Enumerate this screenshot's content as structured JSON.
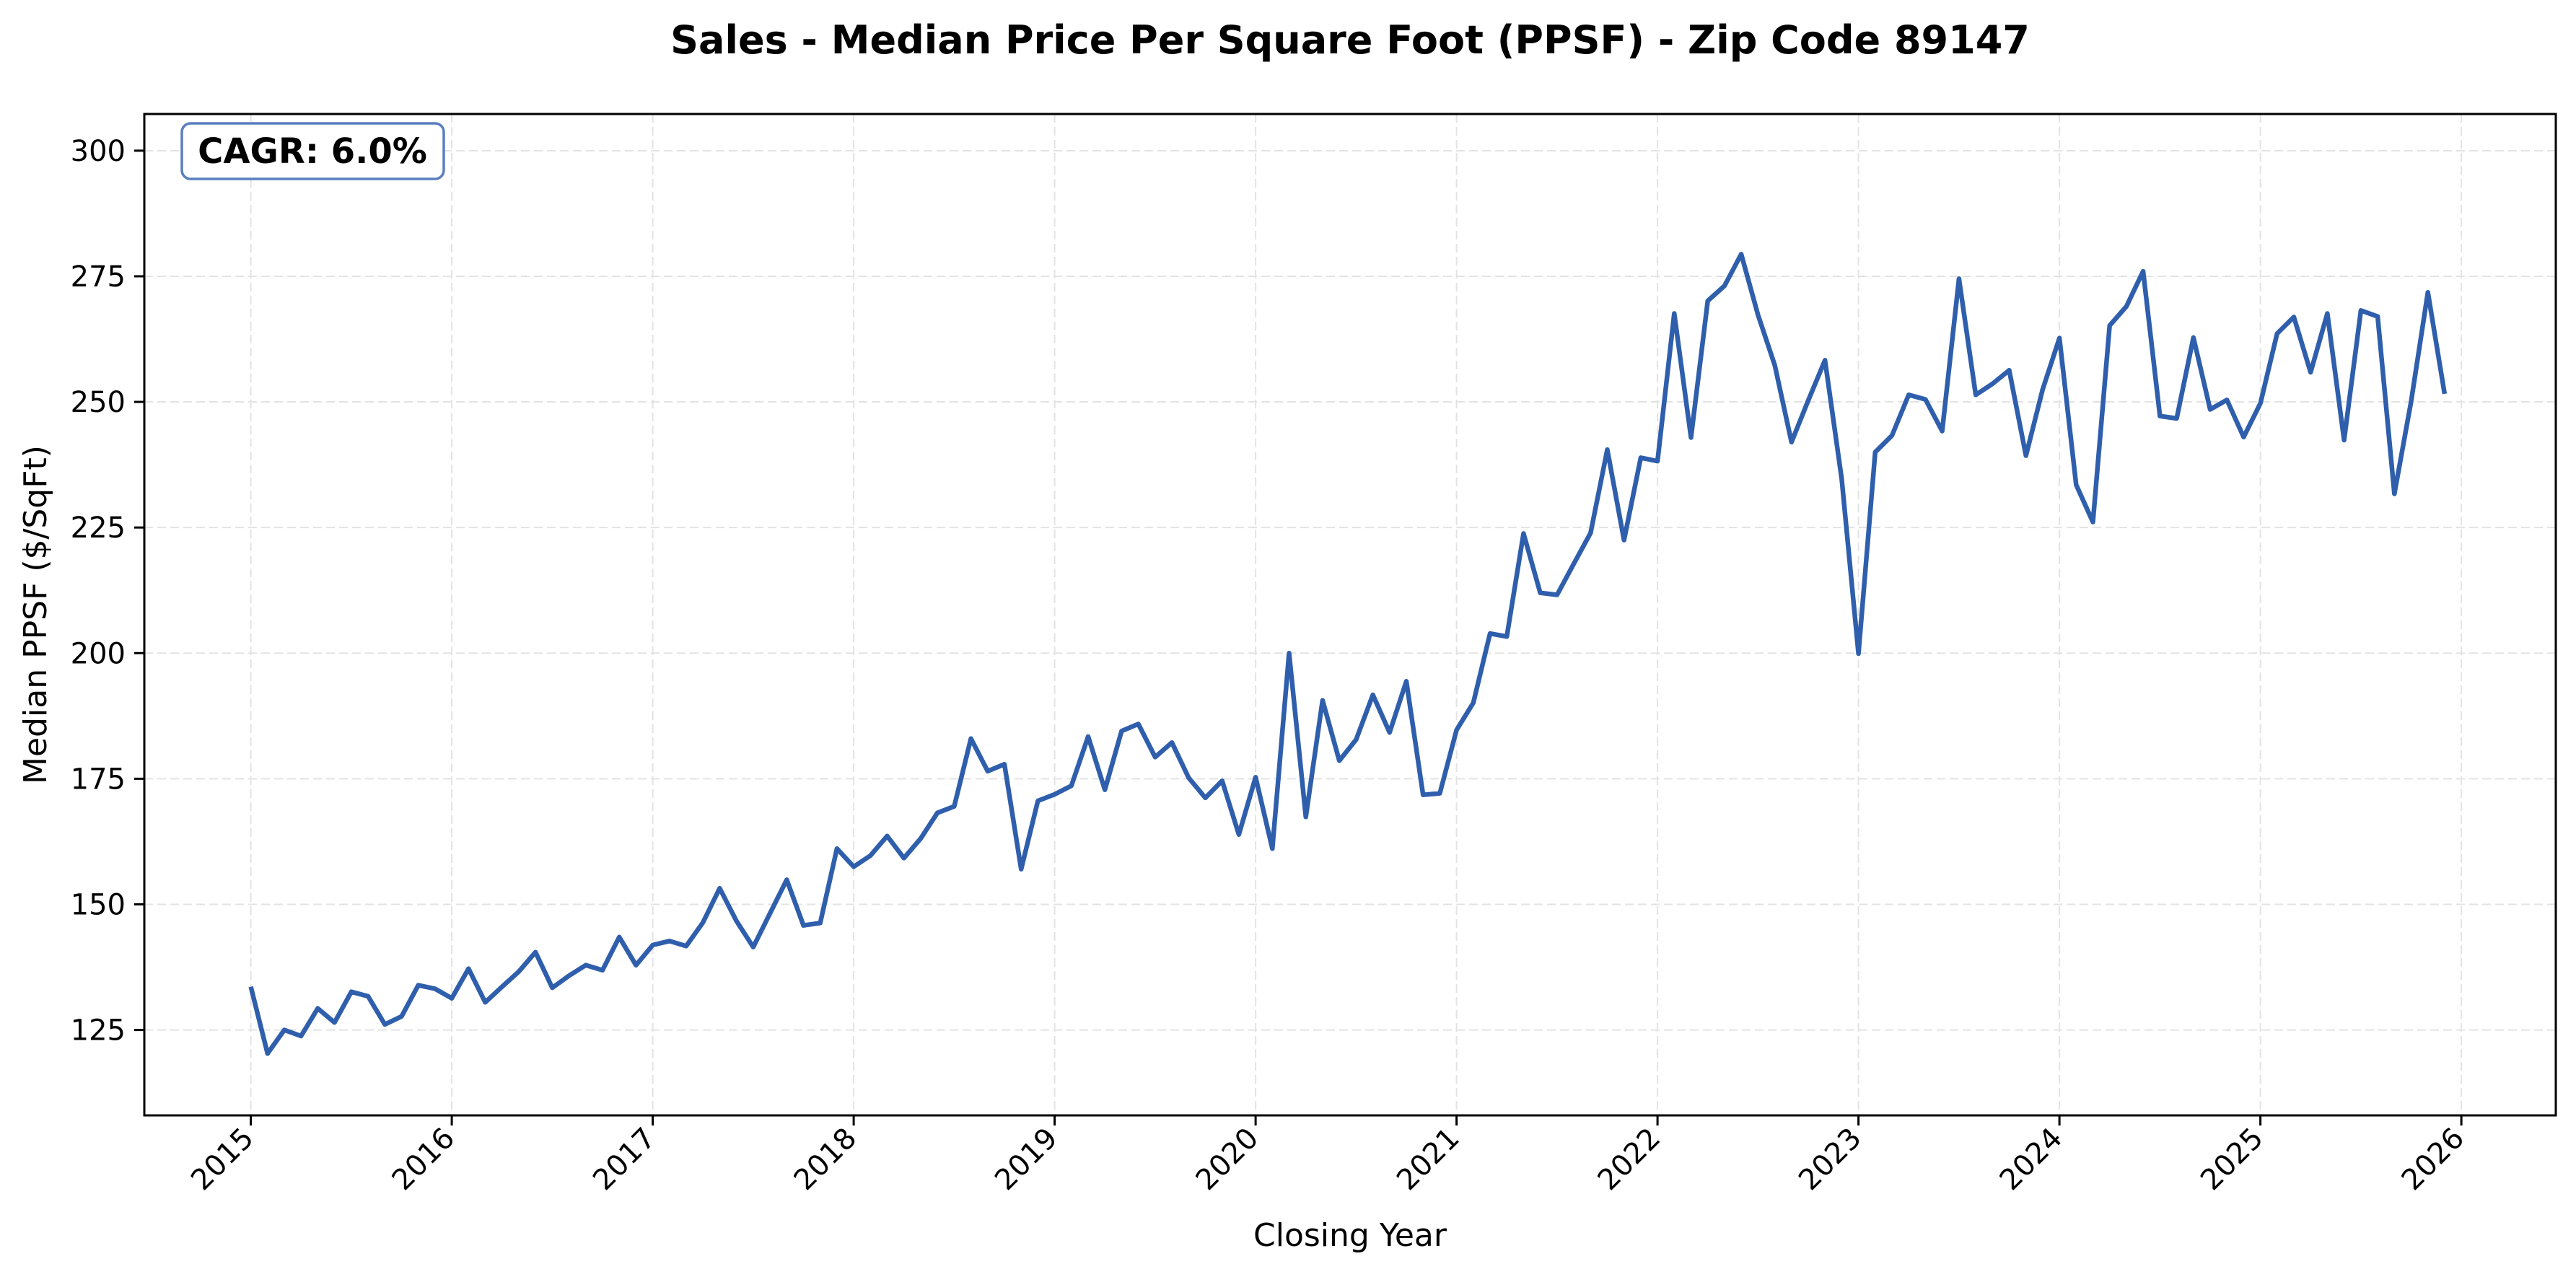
{
  "chart_data": {
    "type": "line",
    "title": "Sales - Median Price Per Square Foot (PPSF) - Zip Code 89147",
    "xlabel": "Closing Year",
    "ylabel": "Median PPSF ($/SqFt)",
    "annotation": "CAGR: 6.0%",
    "xlim": [
      2014.47,
      2026.47
    ],
    "ylim": [
      108,
      307.3
    ],
    "grid": true,
    "legend": "none",
    "line_color": "#2f5fac",
    "annotation_border_color": "#5b7fbf",
    "x_ticks": [
      2015,
      2016,
      2017,
      2018,
      2019,
      2020,
      2021,
      2022,
      2023,
      2024,
      2025,
      2026
    ],
    "x_tick_labels": [
      "2015",
      "2016",
      "2017",
      "2018",
      "2019",
      "2020",
      "2021",
      "2022",
      "2023",
      "2024",
      "2025",
      "2026"
    ],
    "y_ticks": [
      125,
      150,
      175,
      200,
      225,
      250,
      275,
      300
    ],
    "y_tick_labels": [
      "125",
      "150",
      "175",
      "200",
      "225",
      "250",
      "275",
      "300"
    ],
    "series": [
      {
        "name": "Median PPSF",
        "start": "2015-01",
        "frequency": "monthly",
        "values": [
          133.6,
          120.3,
          125.0,
          123.8,
          129.3,
          126.5,
          132.6,
          131.7,
          126.1,
          127.7,
          133.9,
          133.2,
          131.3,
          137.2,
          130.5,
          133.6,
          136.6,
          140.5,
          133.4,
          135.8,
          137.9,
          136.9,
          143.5,
          137.9,
          141.9,
          142.7,
          141.7,
          146.4,
          153.2,
          146.7,
          141.5,
          148.2,
          154.9,
          145.8,
          146.3,
          161.1,
          157.5,
          159.7,
          163.6,
          159.2,
          163.1,
          168.2,
          169.5,
          183.0,
          176.5,
          177.9,
          157.0,
          170.6,
          171.9,
          173.6,
          183.4,
          172.8,
          184.5,
          185.9,
          179.3,
          182.2,
          175.2,
          171.2,
          174.6,
          163.9,
          175.3,
          161.1,
          200.0,
          167.4,
          190.6,
          178.6,
          182.8,
          191.7,
          184.2,
          194.4,
          171.8,
          172.1,
          184.7,
          190.1,
          203.9,
          203.3,
          223.8,
          212.0,
          211.6,
          217.8,
          223.9,
          240.5,
          222.5,
          238.9,
          238.2,
          267.6,
          242.9,
          270.1,
          273.1,
          279.4,
          267.3,
          257.3,
          242.0,
          250.3,
          258.3,
          234.6,
          199.9,
          240.0,
          243.3,
          251.4,
          250.5,
          244.2,
          274.5,
          251.4,
          253.6,
          256.3,
          239.3,
          252.5,
          262.7,
          233.5,
          226.1,
          265.2,
          269.0,
          276.0,
          247.2,
          246.7,
          262.8,
          248.5,
          250.4,
          243.0,
          249.7,
          263.6,
          266.9,
          255.9,
          267.6,
          242.4,
          268.2,
          267.0,
          231.7,
          250.1,
          271.8,
          251.6
        ]
      }
    ]
  }
}
